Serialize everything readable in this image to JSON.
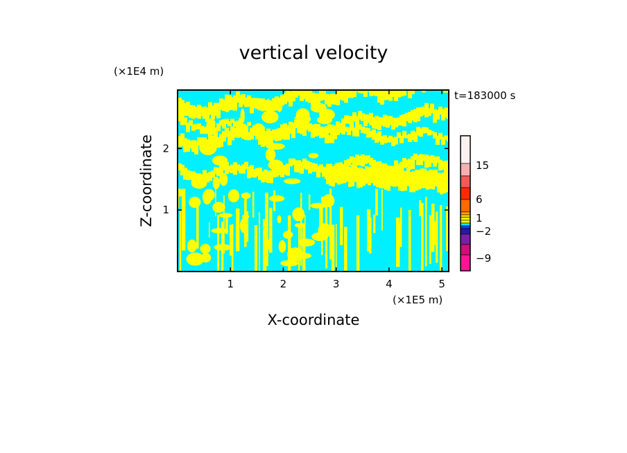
{
  "chart_data": {
    "type": "heatmap",
    "title": "vertical velocity",
    "xlabel": "X-coordinate",
    "ylabel": "Z-coordinate",
    "x_unit": "(×1E5 m)",
    "y_unit": "(×1E4 m)",
    "time_label": "t=183000 s",
    "xlim": [
      0,
      5.13
    ],
    "ylim": [
      0,
      2.95
    ],
    "x_ticks": [
      "1",
      "2",
      "3",
      "4",
      "5"
    ],
    "y_ticks": [
      "1",
      "2"
    ],
    "colorbar": {
      "labels": [
        "15",
        "6",
        "1",
        "−2",
        "−9"
      ],
      "colors": [
        "#ff1493",
        "#cc1177",
        "#7a1fa8",
        "#2a1a9a",
        "#1a3cff",
        "#00f0ff",
        "#ffff00",
        "#ffd200",
        "#ffa500",
        "#ff6a00",
        "#ff2a00",
        "#f05a5a",
        "#f5b0b0",
        "#fdf0f0"
      ]
    },
    "field_colors": {
      "positive": "#ffff00",
      "negative": "#00f0ff"
    }
  }
}
